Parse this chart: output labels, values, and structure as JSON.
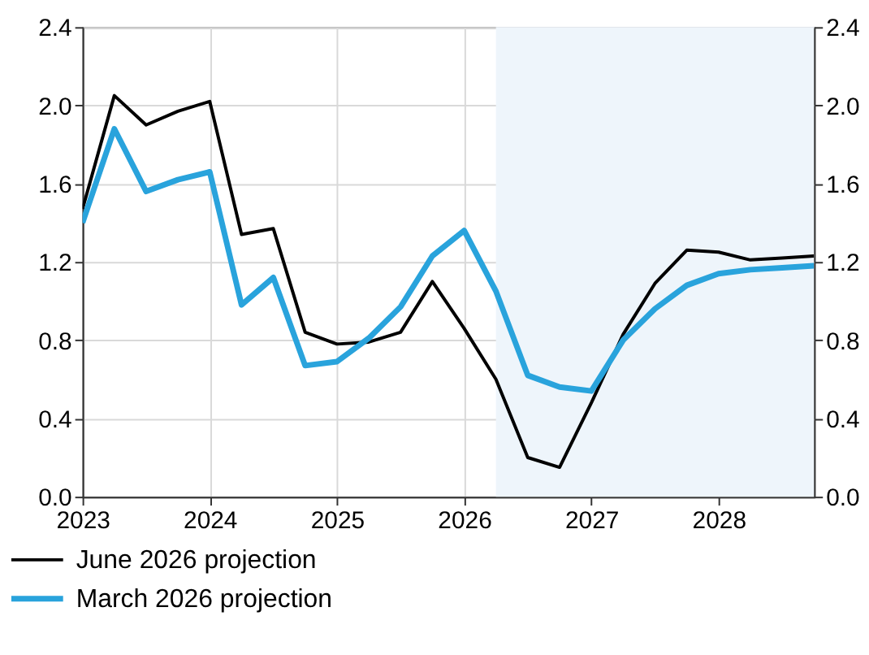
{
  "chart_data": {
    "type": "line",
    "x": [
      2023,
      2023.25,
      2023.5,
      2023.75,
      2024,
      2024.25,
      2024.5,
      2024.75,
      2025,
      2025.25,
      2025.5,
      2025.75,
      2026,
      2026.25,
      2026.5,
      2026.75,
      2027,
      2027.25,
      2027.5,
      2027.75,
      2028,
      2028.25,
      2028.5,
      2028.75
    ],
    "series": [
      {
        "name": "June 2026 projection",
        "color": "#000000",
        "values": [
          1.47,
          2.05,
          1.9,
          1.97,
          2.02,
          1.34,
          1.37,
          0.84,
          0.78,
          0.79,
          0.84,
          1.1,
          0.86,
          0.6,
          0.2,
          0.15,
          0.48,
          0.83,
          1.09,
          1.26,
          1.25,
          1.21,
          1.22,
          1.23
        ]
      },
      {
        "name": "March 2026 projection",
        "color": "#29a3dc",
        "values": [
          1.4,
          1.88,
          1.56,
          1.62,
          1.66,
          0.98,
          1.12,
          0.67,
          0.69,
          0.81,
          0.97,
          1.23,
          1.36,
          1.05,
          0.62,
          0.56,
          0.54,
          0.8,
          0.96,
          1.08,
          1.14,
          1.16,
          1.17,
          1.18
        ]
      }
    ],
    "xlim": [
      2023,
      2028.75
    ],
    "xticks": [
      2023,
      2024,
      2025,
      2026,
      2027,
      2028
    ],
    "ylim": [
      0,
      2.4
    ],
    "yticks": [
      {
        "value": 0,
        "label": "0.0"
      },
      0.4,
      0.8,
      1.2,
      1.6,
      {
        "value": 2,
        "label": "2.0"
      },
      2.4
    ],
    "y2lim": [
      0,
      2.4
    ],
    "y2ticks": [
      {
        "value": 0,
        "label": "0.0"
      },
      0.4,
      0.8,
      1.2,
      1.6,
      {
        "value": 2,
        "label": "2.0"
      },
      2.4
    ],
    "bands": [
      {
        "axis": "x",
        "from": 2026.25,
        "to": 2028.75,
        "color": "#eef5fb"
      }
    ],
    "grid": true,
    "legend": "bottom left",
    "line_style": "solid",
    "marker": "none"
  }
}
